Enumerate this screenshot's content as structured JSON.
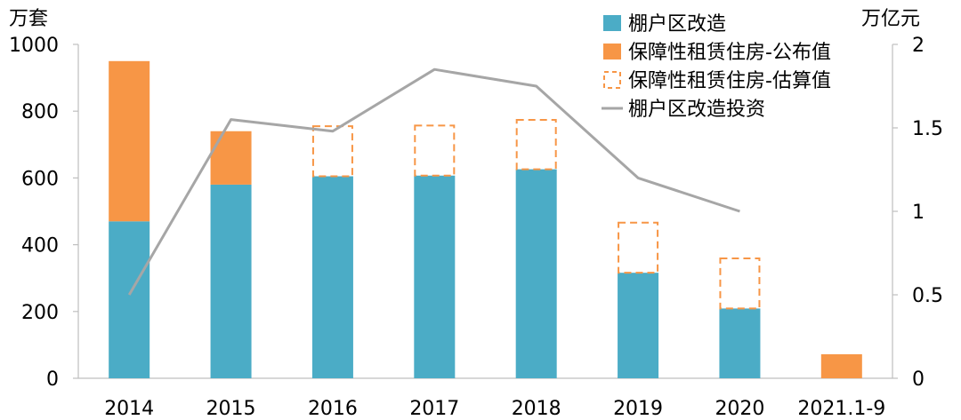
{
  "chart_data": {
    "type": "bar",
    "categories": [
      "2014",
      "2015",
      "2016",
      "2017",
      "2018",
      "2019",
      "2020",
      "2021.1-9"
    ],
    "left_axis": {
      "unit": "万套",
      "ylim": [
        0,
        1000
      ],
      "ticks": [
        "0",
        "200",
        "400",
        "600",
        "800",
        "1000"
      ],
      "tick_values": [
        0,
        200,
        400,
        600,
        800,
        1000
      ]
    },
    "right_axis": {
      "unit": "万亿元",
      "ylim": [
        0,
        2
      ],
      "ticks": [
        "0",
        "0.5",
        "1",
        "1.5",
        "2"
      ],
      "tick_values": [
        0,
        0.5,
        1,
        1.5,
        2
      ]
    },
    "series": [
      {
        "name": "棚户区改造",
        "kind": "bar",
        "axis": "left",
        "color": "#4BACC6",
        "values": [
          470,
          580,
          605,
          607,
          626,
          316,
          209,
          null
        ]
      },
      {
        "name": "保障性租赁住房-公布值",
        "kind": "bar-stacked",
        "axis": "left",
        "color": "#F79646",
        "values": [
          480,
          160,
          null,
          null,
          null,
          null,
          null,
          72
        ]
      },
      {
        "name": "保障性租赁住房-估算值",
        "kind": "bar-stacked-dashed",
        "axis": "left",
        "color": "#F79646",
        "values": [
          null,
          null,
          150,
          150,
          148,
          150,
          150,
          null
        ]
      },
      {
        "name": "棚户区改造投资",
        "kind": "line",
        "axis": "right",
        "color": "#A6A6A6",
        "values": [
          0.5,
          1.55,
          1.48,
          1.85,
          1.75,
          1.2,
          1.0,
          null
        ]
      }
    ],
    "grid": false,
    "legend_position": "top-right"
  }
}
